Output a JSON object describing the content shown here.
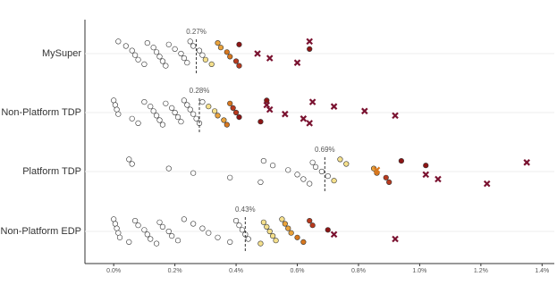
{
  "chart_data": {
    "type": "strip",
    "xlim": [
      -0.094,
      1.44
    ],
    "xticks": [
      {
        "value": 0,
        "label": "0.0%"
      },
      {
        "value": 0.2,
        "label": "0.2%"
      },
      {
        "value": 0.4,
        "label": "0.4%"
      },
      {
        "value": 0.6,
        "label": "0.6%"
      },
      {
        "value": 0.8,
        "label": "0.8%"
      },
      {
        "value": 1.0,
        "label": "1.0%"
      },
      {
        "value": 1.2,
        "label": "1.2%"
      },
      {
        "value": 1.4,
        "label": "1.4%"
      }
    ],
    "grid": true,
    "series": [
      {
        "name": "MySuper",
        "median": {
          "value": 0.27,
          "label": "0.27%"
        },
        "values": [
          0.015,
          0.04,
          0.06,
          0.07,
          0.08,
          0.1,
          0.11,
          0.13,
          0.14,
          0.15,
          0.16,
          0.17,
          0.18,
          0.2,
          0.22,
          0.23,
          0.24,
          0.25,
          0.26,
          0.28,
          0.29,
          0.3,
          0.32,
          0.34,
          0.35,
          0.37,
          0.38,
          0.4,
          0.41,
          0.41,
          0.64,
          0.47,
          0.51,
          0.6,
          0.64
        ],
        "markers": [
          "o",
          "o",
          "o",
          "o",
          "o",
          "o",
          "o",
          "o",
          "o",
          "o",
          "o",
          "o",
          "o",
          "o",
          "o",
          "o",
          "o",
          "o",
          "o",
          "o",
          "o",
          "o",
          "o",
          "o",
          "o",
          "o",
          "o",
          "o",
          "o",
          "o",
          "o",
          "x",
          "x",
          "x",
          "x"
        ],
        "colors": [
          "#ffffff",
          "#ffffff",
          "#ffffff",
          "#ffffff",
          "#ffffff",
          "#ffffff",
          "#ffffff",
          "#ffffff",
          "#ffffff",
          "#ffffff",
          "#ffffff",
          "#ffffff",
          "#ffffff",
          "#ffffff",
          "#ffffff",
          "#ffffff",
          "#ffffff",
          "#ffffff",
          "#ffffff",
          "#ffffff",
          "#ffffff",
          "#f5e08c",
          "#f5e08c",
          "#e9a23b",
          "#e9a23b",
          "#d7771e",
          "#d7771e",
          "#b83a1e",
          "#b83a1e",
          "#8c1515",
          "#8c1515",
          "#7a1230",
          "#7a1230",
          "#7a1230",
          "#7a1230"
        ]
      },
      {
        "name": "Non-Platform TDP",
        "median": {
          "value": 0.28,
          "label": "0.28%"
        },
        "values": [
          0,
          0.005,
          0.01,
          0.015,
          0.06,
          0.08,
          0.1,
          0.12,
          0.13,
          0.14,
          0.15,
          0.16,
          0.17,
          0.19,
          0.2,
          0.21,
          0.22,
          0.23,
          0.24,
          0.25,
          0.26,
          0.27,
          0.28,
          0.29,
          0.31,
          0.33,
          0.34,
          0.36,
          0.37,
          0.38,
          0.39,
          0.4,
          0.41,
          0.48,
          0.5,
          0.5,
          0.51,
          0.56,
          0.62,
          0.64,
          0.65,
          0.72,
          0.82,
          0.92
        ],
        "markers": [
          "o",
          "o",
          "o",
          "o",
          "o",
          "o",
          "o",
          "o",
          "o",
          "o",
          "o",
          "o",
          "o",
          "o",
          "o",
          "o",
          "o",
          "o",
          "o",
          "o",
          "o",
          "o",
          "o",
          "o",
          "o",
          "o",
          "o",
          "o",
          "o",
          "o",
          "o",
          "o",
          "o",
          "o",
          "o",
          "x",
          "x",
          "x",
          "x",
          "x",
          "x",
          "x",
          "x",
          "x"
        ],
        "colors": [
          "#ffffff",
          "#ffffff",
          "#ffffff",
          "#ffffff",
          "#ffffff",
          "#ffffff",
          "#ffffff",
          "#ffffff",
          "#ffffff",
          "#ffffff",
          "#ffffff",
          "#ffffff",
          "#ffffff",
          "#ffffff",
          "#ffffff",
          "#ffffff",
          "#ffffff",
          "#ffffff",
          "#ffffff",
          "#ffffff",
          "#ffffff",
          "#ffffff",
          "#ffffff",
          "#ffffff",
          "#f5e08c",
          "#f5e08c",
          "#e9a23b",
          "#e9a23b",
          "#d7771e",
          "#d7771e",
          "#b83a1e",
          "#b83a1e",
          "#8c1515",
          "#8c1515",
          "#8c1515",
          "#7a1230",
          "#7a1230",
          "#7a1230",
          "#7a1230",
          "#7a1230",
          "#7a1230",
          "#7a1230",
          "#7a1230",
          "#7a1230"
        ]
      },
      {
        "name": "Platform TDP",
        "median": {
          "value": 0.69,
          "label": "0.69%"
        },
        "values": [
          0.05,
          0.06,
          0.18,
          0.26,
          0.38,
          0.48,
          0.49,
          0.52,
          0.57,
          0.6,
          0.62,
          0.64,
          0.65,
          0.66,
          0.68,
          0.7,
          0.72,
          0.74,
          0.76,
          0.85,
          0.86,
          0.89,
          0.9,
          0.94,
          1.02,
          0.86,
          1.02,
          1.06,
          1.22,
          1.35
        ],
        "markers": [
          "o",
          "o",
          "o",
          "o",
          "o",
          "o",
          "o",
          "o",
          "o",
          "o",
          "o",
          "o",
          "o",
          "o",
          "o",
          "o",
          "o",
          "o",
          "o",
          "o",
          "o",
          "o",
          "o",
          "o",
          "o",
          "x",
          "x",
          "x",
          "x",
          "x"
        ],
        "colors": [
          "#ffffff",
          "#ffffff",
          "#ffffff",
          "#ffffff",
          "#ffffff",
          "#ffffff",
          "#ffffff",
          "#ffffff",
          "#ffffff",
          "#ffffff",
          "#ffffff",
          "#ffffff",
          "#ffffff",
          "#ffffff",
          "#ffffff",
          "#ffffff",
          "#f5e08c",
          "#f5e08c",
          "#f5e08c",
          "#e9a23b",
          "#d7771e",
          "#b83a1e",
          "#b83a1e",
          "#8c1515",
          "#8c1515",
          "#d7771e",
          "#7a1230",
          "#7a1230",
          "#7a1230",
          "#7a1230"
        ]
      },
      {
        "name": "Non-Platform EDP",
        "median": {
          "value": 0.43,
          "label": "0.43%"
        },
        "values": [
          0,
          0.005,
          0.01,
          0.015,
          0.02,
          0.05,
          0.07,
          0.08,
          0.1,
          0.11,
          0.12,
          0.14,
          0.15,
          0.16,
          0.18,
          0.19,
          0.21,
          0.23,
          0.26,
          0.29,
          0.31,
          0.34,
          0.38,
          0.4,
          0.41,
          0.42,
          0.43,
          0.44,
          0.48,
          0.49,
          0.5,
          0.51,
          0.52,
          0.53,
          0.55,
          0.56,
          0.57,
          0.58,
          0.6,
          0.62,
          0.64,
          0.65,
          0.7,
          0.72,
          0.92
        ],
        "markers": [
          "o",
          "o",
          "o",
          "o",
          "o",
          "o",
          "o",
          "o",
          "o",
          "o",
          "o",
          "o",
          "o",
          "o",
          "o",
          "o",
          "o",
          "o",
          "o",
          "o",
          "o",
          "o",
          "o",
          "o",
          "o",
          "o",
          "o",
          "o",
          "o",
          "o",
          "o",
          "o",
          "o",
          "o",
          "o",
          "o",
          "o",
          "o",
          "o",
          "o",
          "o",
          "o",
          "o",
          "x",
          "x"
        ],
        "colors": [
          "#ffffff",
          "#ffffff",
          "#ffffff",
          "#ffffff",
          "#ffffff",
          "#ffffff",
          "#ffffff",
          "#ffffff",
          "#ffffff",
          "#ffffff",
          "#ffffff",
          "#ffffff",
          "#ffffff",
          "#ffffff",
          "#ffffff",
          "#ffffff",
          "#ffffff",
          "#ffffff",
          "#ffffff",
          "#ffffff",
          "#ffffff",
          "#ffffff",
          "#ffffff",
          "#ffffff",
          "#ffffff",
          "#ffffff",
          "#ffffff",
          "#ffffff",
          "#f5e08c",
          "#f5e08c",
          "#f5e08c",
          "#f5e08c",
          "#f5e08c",
          "#f5e08c",
          "#f5e08c",
          "#e9a23b",
          "#e9a23b",
          "#e9a23b",
          "#d7771e",
          "#d7771e",
          "#b83a1e",
          "#b83a1e",
          "#8c1515",
          "#7a1230",
          "#7a1230"
        ]
      }
    ]
  }
}
